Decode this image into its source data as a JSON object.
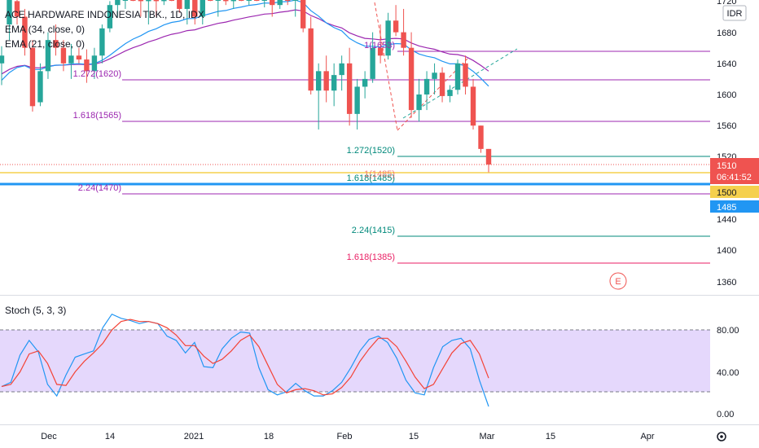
{
  "header": {
    "title": "ACE HARDWARE INDONESIA TBK., 1D, IDX",
    "ema34": "EMA (34, close, 0)",
    "ema21": "EMA (21, close, 0)",
    "currency": "IDR"
  },
  "stoch": {
    "title": "Stoch (5, 3, 3)"
  },
  "price_axis": {
    "ticks": [
      "1720",
      "1680",
      "1640",
      "1600",
      "1560",
      "1520",
      "1440",
      "1400",
      "1360"
    ],
    "last_price": "1510",
    "countdown": "06:41:52",
    "level_1500": "1500",
    "level_1485": "1485"
  },
  "stoch_axis": {
    "ticks": [
      "80.00",
      "40.00",
      "0.00"
    ]
  },
  "time_axis": {
    "ticks": [
      "Dec",
      "14",
      "2021",
      "18",
      "Feb",
      "15",
      "Mar",
      "15",
      "Apr"
    ]
  },
  "fib_labels": {
    "l1620": "1.272(1620)",
    "l1565": "1.618(1565)",
    "l1470": "2.24(1470)",
    "l1653": "1(1653)",
    "l1520": "1.272(1520)",
    "l1485a": "1.618(1485)",
    "l1485b": "1(1485)",
    "l1415": "2.24(1415)",
    "l1385": "1.618(1385)"
  },
  "marker": "E",
  "colors": {
    "up": "#26a69a",
    "down": "#ef5350",
    "ema34": "#9c27b0",
    "ema21": "#2196f3",
    "fib_purple": "#9c27b0",
    "fib_teal": "#00897b",
    "fib_red": "#e91e63",
    "blue_level": "#2196f3",
    "yellow_level": "#f5d04d",
    "stoch_band": "#e1d1fb",
    "k_line": "#2196f3",
    "d_line": "#f44336"
  },
  "chart_data": [
    {
      "type": "candlestick",
      "title": "ACE HARDWARE INDONESIA TBK., 1D, IDX",
      "ylim": [
        1338,
        1740
      ],
      "candles": [
        {
          "o": 1640,
          "h": 1662,
          "l": 1612,
          "c": 1650
        },
        {
          "o": 1690,
          "h": 1730,
          "l": 1670,
          "c": 1728
        },
        {
          "o": 1720,
          "h": 1740,
          "l": 1690,
          "c": 1700
        },
        {
          "o": 1700,
          "h": 1710,
          "l": 1650,
          "c": 1660
        },
        {
          "o": 1660,
          "h": 1670,
          "l": 1578,
          "c": 1585
        },
        {
          "o": 1590,
          "h": 1640,
          "l": 1585,
          "c": 1630
        },
        {
          "o": 1630,
          "h": 1680,
          "l": 1620,
          "c": 1670
        },
        {
          "o": 1670,
          "h": 1690,
          "l": 1650,
          "c": 1660
        },
        {
          "o": 1660,
          "h": 1670,
          "l": 1630,
          "c": 1640
        },
        {
          "o": 1640,
          "h": 1665,
          "l": 1620,
          "c": 1650
        },
        {
          "o": 1650,
          "h": 1660,
          "l": 1640,
          "c": 1645
        },
        {
          "o": 1645,
          "h": 1658,
          "l": 1615,
          "c": 1630
        },
        {
          "o": 1630,
          "h": 1660,
          "l": 1620,
          "c": 1650
        },
        {
          "o": 1650,
          "h": 1690,
          "l": 1640,
          "c": 1685
        },
        {
          "o": 1685,
          "h": 1720,
          "l": 1680,
          "c": 1715
        },
        {
          "o": 1715,
          "h": 1740,
          "l": 1700,
          "c": 1735
        },
        {
          "o": 1735,
          "h": 1740,
          "l": 1710,
          "c": 1738
        },
        {
          "o": 1738,
          "h": 1740,
          "l": 1720,
          "c": 1730
        },
        {
          "o": 1730,
          "h": 1740,
          "l": 1700,
          "c": 1720
        },
        {
          "o": 1720,
          "h": 1740,
          "l": 1690,
          "c": 1735
        },
        {
          "o": 1735,
          "h": 1740,
          "l": 1700,
          "c": 1720
        },
        {
          "o": 1720,
          "h": 1740,
          "l": 1715,
          "c": 1738
        },
        {
          "o": 1738,
          "h": 1740,
          "l": 1720,
          "c": 1725
        },
        {
          "o": 1725,
          "h": 1740,
          "l": 1705,
          "c": 1710
        },
        {
          "o": 1710,
          "h": 1740,
          "l": 1690,
          "c": 1730
        },
        {
          "o": 1730,
          "h": 1740,
          "l": 1690,
          "c": 1700
        },
        {
          "o": 1700,
          "h": 1740,
          "l": 1690,
          "c": 1738
        },
        {
          "o": 1738,
          "h": 1740,
          "l": 1720,
          "c": 1730
        },
        {
          "o": 1730,
          "h": 1740,
          "l": 1700,
          "c": 1735
        },
        {
          "o": 1735,
          "h": 1740,
          "l": 1715,
          "c": 1720
        },
        {
          "o": 1720,
          "h": 1740,
          "l": 1710,
          "c": 1738
        },
        {
          "o": 1738,
          "h": 1740,
          "l": 1720,
          "c": 1730
        },
        {
          "o": 1730,
          "h": 1740,
          "l": 1715,
          "c": 1735
        },
        {
          "o": 1735,
          "h": 1740,
          "l": 1720,
          "c": 1728
        },
        {
          "o": 1728,
          "h": 1740,
          "l": 1712,
          "c": 1736
        },
        {
          "o": 1736,
          "h": 1740,
          "l": 1700,
          "c": 1715
        },
        {
          "o": 1715,
          "h": 1740,
          "l": 1710,
          "c": 1735
        },
        {
          "o": 1735,
          "h": 1740,
          "l": 1715,
          "c": 1725
        },
        {
          "o": 1725,
          "h": 1740,
          "l": 1700,
          "c": 1740
        },
        {
          "o": 1740,
          "h": 1745,
          "l": 1680,
          "c": 1685
        },
        {
          "o": 1685,
          "h": 1700,
          "l": 1600,
          "c": 1605
        },
        {
          "o": 1605,
          "h": 1640,
          "l": 1555,
          "c": 1630
        },
        {
          "o": 1630,
          "h": 1650,
          "l": 1590,
          "c": 1605
        },
        {
          "o": 1605,
          "h": 1640,
          "l": 1585,
          "c": 1625
        },
        {
          "o": 1625,
          "h": 1650,
          "l": 1605,
          "c": 1640
        },
        {
          "o": 1640,
          "h": 1660,
          "l": 1560,
          "c": 1575
        },
        {
          "o": 1575,
          "h": 1620,
          "l": 1555,
          "c": 1610
        },
        {
          "o": 1610,
          "h": 1630,
          "l": 1595,
          "c": 1620
        },
        {
          "o": 1620,
          "h": 1680,
          "l": 1615,
          "c": 1660
        },
        {
          "o": 1660,
          "h": 1690,
          "l": 1640,
          "c": 1650
        },
        {
          "o": 1650,
          "h": 1705,
          "l": 1645,
          "c": 1695
        },
        {
          "o": 1695,
          "h": 1715,
          "l": 1675,
          "c": 1680
        },
        {
          "o": 1680,
          "h": 1710,
          "l": 1650,
          "c": 1660
        },
        {
          "o": 1660,
          "h": 1680,
          "l": 1570,
          "c": 1580
        },
        {
          "o": 1580,
          "h": 1620,
          "l": 1565,
          "c": 1600
        },
        {
          "o": 1600,
          "h": 1630,
          "l": 1580,
          "c": 1620
        },
        {
          "o": 1620,
          "h": 1640,
          "l": 1600,
          "c": 1628
        },
        {
          "o": 1628,
          "h": 1635,
          "l": 1590,
          "c": 1598
        },
        {
          "o": 1598,
          "h": 1612,
          "l": 1590,
          "c": 1606
        },
        {
          "o": 1606,
          "h": 1645,
          "l": 1600,
          "c": 1640
        },
        {
          "o": 1640,
          "h": 1650,
          "l": 1600,
          "c": 1610
        },
        {
          "o": 1610,
          "h": 1620,
          "l": 1555,
          "c": 1560
        },
        {
          "o": 1560,
          "h": 1560,
          "l": 1525,
          "c": 1530
        },
        {
          "o": 1530,
          "h": 1530,
          "l": 1500,
          "c": 1510
        }
      ]
    },
    {
      "type": "line",
      "title": "Stoch (5, 3, 3)",
      "ylim": [
        -10,
        100
      ],
      "series": [
        {
          "values": [
            26,
            30,
            56,
            70,
            59,
            28,
            17,
            37,
            54,
            57,
            60,
            82,
            95,
            91,
            89,
            86,
            88,
            86,
            74,
            70,
            58,
            68,
            45,
            44,
            62,
            72,
            78,
            77,
            44,
            23,
            18,
            21,
            29,
            22,
            17,
            17,
            22,
            30,
            44,
            60,
            71,
            74,
            68,
            53,
            32,
            20,
            18,
            44,
            64,
            70,
            72,
            62,
            32,
            7
          ]
        },
        {
          "values": [
            26,
            28,
            40,
            57,
            60,
            48,
            28,
            27,
            40,
            50,
            58,
            67,
            80,
            88,
            90,
            88,
            88,
            86,
            82,
            75,
            65,
            65,
            55,
            48,
            52,
            60,
            70,
            75,
            64,
            46,
            28,
            20,
            23,
            24,
            22,
            18,
            19,
            25,
            35,
            50,
            62,
            72,
            72,
            64,
            50,
            35,
            24,
            28,
            43,
            58,
            67,
            70,
            57,
            34
          ]
        }
      ]
    }
  ]
}
